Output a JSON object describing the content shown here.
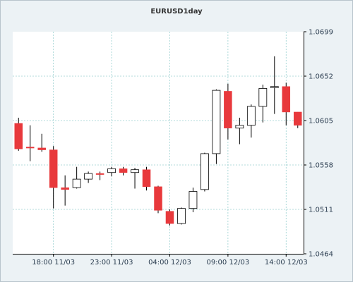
{
  "chart_data": {
    "type": "candlestick",
    "title": "EURUSD1day",
    "ylim": [
      1.0464,
      1.0699
    ],
    "y_ticks": [
      "1.0699",
      "1.0652",
      "1.0605",
      "1.0558",
      "1.0511",
      "1.0464"
    ],
    "x_ticks": [
      {
        "label": "18:00 11/03",
        "index": 3.5
      },
      {
        "label": "23:00 11/03",
        "index": 8.5
      },
      {
        "label": "04:00 12/03",
        "index": 13.5
      },
      {
        "label": "09:00 12/03",
        "index": 18.5
      },
      {
        "label": "14:00 12/03",
        "index": 23.5
      }
    ],
    "colors": {
      "bear": "#e8393c",
      "bull": "#ffffff",
      "outline": "#000000",
      "grid": "#9ad0d0",
      "wick": "#000000"
    },
    "candles": [
      {
        "open": 1.0602,
        "high": 1.0608,
        "low": 1.0573,
        "close": 1.0575
      },
      {
        "open": 1.0577,
        "high": 1.06,
        "low": 1.0562,
        "close": 1.0576
      },
      {
        "open": 1.0576,
        "high": 1.0591,
        "low": 1.0572,
        "close": 1.0574
      },
      {
        "open": 1.0574,
        "high": 1.0578,
        "low": 1.0512,
        "close": 1.0534
      },
      {
        "open": 1.0534,
        "high": 1.0547,
        "low": 1.0515,
        "close": 1.0532
      },
      {
        "open": 1.0534,
        "high": 1.0556,
        "low": 1.0533,
        "close": 1.0543
      },
      {
        "open": 1.0543,
        "high": 1.0551,
        "low": 1.0539,
        "close": 1.0549
      },
      {
        "open": 1.0549,
        "high": 1.0551,
        "low": 1.0542,
        "close": 1.0548
      },
      {
        "open": 1.055,
        "high": 1.0556,
        "low": 1.0546,
        "close": 1.0554
      },
      {
        "open": 1.0554,
        "high": 1.0556,
        "low": 1.0547,
        "close": 1.055
      },
      {
        "open": 1.055,
        "high": 1.0555,
        "low": 1.0533,
        "close": 1.0553
      },
      {
        "open": 1.0553,
        "high": 1.0556,
        "low": 1.0531,
        "close": 1.0535
      },
      {
        "open": 1.0535,
        "high": 1.0536,
        "low": 1.0507,
        "close": 1.051
      },
      {
        "open": 1.0509,
        "high": 1.0511,
        "low": 1.0494,
        "close": 1.0496
      },
      {
        "open": 1.0496,
        "high": 1.0513,
        "low": 1.0495,
        "close": 1.0512
      },
      {
        "open": 1.0512,
        "high": 1.0534,
        "low": 1.0508,
        "close": 1.053
      },
      {
        "open": 1.0532,
        "high": 1.0571,
        "low": 1.053,
        "close": 1.057
      },
      {
        "open": 1.057,
        "high": 1.0638,
        "low": 1.0559,
        "close": 1.0637
      },
      {
        "open": 1.0636,
        "high": 1.0644,
        "low": 1.0585,
        "close": 1.0597
      },
      {
        "open": 1.0597,
        "high": 1.0608,
        "low": 1.058,
        "close": 1.06
      },
      {
        "open": 1.06,
        "high": 1.0622,
        "low": 1.0587,
        "close": 1.062
      },
      {
        "open": 1.062,
        "high": 1.0643,
        "low": 1.0603,
        "close": 1.0639
      },
      {
        "open": 1.0641,
        "high": 1.0673,
        "low": 1.0612,
        "close": 1.0641
      },
      {
        "open": 1.0641,
        "high": 1.0645,
        "low": 1.06,
        "close": 1.0614
      },
      {
        "open": 1.0614,
        "high": 1.0614,
        "low": 1.0597,
        "close": 1.06
      }
    ]
  }
}
